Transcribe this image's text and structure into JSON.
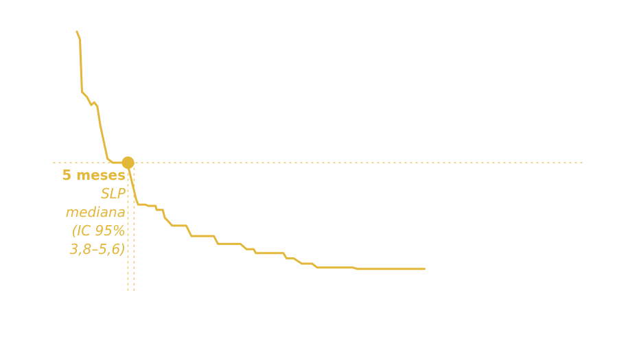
{
  "colors": {
    "accent": "#e3b73a",
    "background": "#ffffff"
  },
  "annotation": {
    "value_label": "5 meses",
    "lines": [
      "SLP",
      "mediana",
      "(IC 95%",
      "3,8–5,6)"
    ]
  },
  "chart_data": {
    "type": "line",
    "title": "",
    "xlabel": "",
    "ylabel": "",
    "xlim": [
      0,
      30
    ],
    "ylim": [
      0,
      1
    ],
    "grid": false,
    "legend": "none",
    "median": {
      "x": 5,
      "ci": [
        3.8,
        5.6
      ],
      "y": 0.5
    },
    "series": [
      {
        "x": [
          0,
          0.3,
          0.5,
          1.0,
          1.4,
          1.7,
          2.0,
          2.3,
          3.0,
          3.5,
          4.5,
          5.0,
          5.3,
          5.8,
          6.0,
          6.7,
          7.0,
          7.7,
          7.8,
          8.4,
          8.6,
          9.1,
          9.3,
          10.7,
          11.2,
          13.4,
          13.8,
          16.0,
          16.6,
          17.3,
          17.5,
          20.2,
          20.5,
          21.2,
          22.0,
          23.0,
          23.5,
          27.0,
          27.4,
          34.0
        ],
        "y": [
          1.0,
          0.97,
          0.77,
          0.75,
          0.72,
          0.73,
          0.715,
          0.64,
          0.515,
          0.5,
          0.5,
          0.49,
          0.44,
          0.36,
          0.34,
          0.34,
          0.335,
          0.335,
          0.32,
          0.32,
          0.29,
          0.27,
          0.26,
          0.26,
          0.22,
          0.22,
          0.19,
          0.19,
          0.17,
          0.17,
          0.155,
          0.155,
          0.135,
          0.135,
          0.115,
          0.115,
          0.1,
          0.1,
          0.095,
          0.095
        ]
      }
    ]
  }
}
